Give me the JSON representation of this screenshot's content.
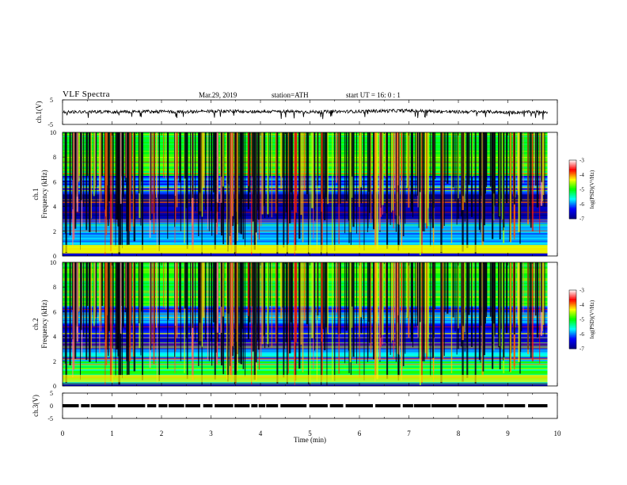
{
  "header": {
    "title": "VLF  Spectra",
    "date": "Mar.29, 2019",
    "station": "station=ATH",
    "start": "start  UT  =    16: 0   : 1"
  },
  "colorscale": {
    "stops": [
      "#00007f",
      "#0000ff",
      "#00ffff",
      "#00ff00",
      "#ffff00",
      "#ff0000",
      "#ffffff"
    ],
    "label": "log(PSD)(V²/Hz)"
  },
  "chart_data": [
    {
      "type": "line",
      "ylabel": "ch.1(V)",
      "ylim": [
        -5,
        5
      ],
      "yticks": [
        "5",
        "-5"
      ],
      "xlim": [
        0,
        10
      ],
      "x": [
        0,
        0.5,
        1,
        1.5,
        2,
        2.5,
        3,
        3.5,
        4,
        4.5,
        5,
        5.5,
        6,
        6.5,
        7,
        7.5,
        8,
        8.5,
        9,
        9.5,
        9.8
      ],
      "values": [
        0.1,
        0.2,
        0.1,
        0.3,
        0.2,
        0.1,
        0.3,
        0.4,
        0.2,
        0.3,
        0.1,
        0.2,
        0.3,
        0.5,
        0.6,
        0.3,
        0.1,
        0.2,
        -0.1,
        0.0,
        0.1
      ]
    },
    {
      "type": "heatmap",
      "ylabel": "ch.1\nFrequency (kHz)",
      "yticks": [
        "0",
        "2",
        "4",
        "6",
        "8",
        "10"
      ],
      "ylim": [
        0,
        10
      ],
      "xlim": [
        0,
        10
      ],
      "colorbar": {
        "ticks": [
          "-3",
          "-4",
          "-5",
          "-6",
          "-7"
        ],
        "range": [
          -7,
          -3
        ]
      },
      "bands_khz": [
        {
          "range": [
            0,
            0.3
          ],
          "level": -6.5
        },
        {
          "range": [
            0.3,
            0.9
          ],
          "level": -4.5
        },
        {
          "range": [
            0.9,
            3.0
          ],
          "level": -6.0
        },
        {
          "range": [
            3.0,
            5.0
          ],
          "level": -6.9
        },
        {
          "range": [
            5.0,
            6.5
          ],
          "level": -6.1
        },
        {
          "range": [
            6.5,
            10
          ],
          "level": -5.0
        }
      ]
    },
    {
      "type": "heatmap",
      "ylabel": "ch.2\nFrequency (kHz)",
      "yticks": [
        "0",
        "2",
        "4",
        "6",
        "8",
        "10"
      ],
      "ylim": [
        0,
        10
      ],
      "xlim": [
        0,
        10
      ],
      "colorbar": {
        "ticks": [
          "-3",
          "-4",
          "-5",
          "-6",
          "-7"
        ],
        "range": [
          -7,
          -3
        ]
      },
      "bands_khz": [
        {
          "range": [
            0,
            0.3
          ],
          "level": -6.5
        },
        {
          "range": [
            0.3,
            2.0
          ],
          "level": -5.2
        },
        {
          "range": [
            2.0,
            3.0
          ],
          "level": -5.9
        },
        {
          "range": [
            3.0,
            5.0
          ],
          "level": -6.5
        },
        {
          "range": [
            5.0,
            6.5
          ],
          "level": -6.0
        },
        {
          "range": [
            6.5,
            10
          ],
          "level": -5.0
        }
      ]
    },
    {
      "type": "line",
      "ylabel": "ch.3(V)",
      "ylim": [
        -5,
        5
      ],
      "yticks": [
        "5",
        "0",
        "-5"
      ],
      "xlim": [
        0,
        10
      ],
      "xlabel": "Time  (min)",
      "xticks": [
        "0",
        "1",
        "2",
        "3",
        "4",
        "5",
        "6",
        "7",
        "8",
        "9",
        "10"
      ],
      "level": 0
    }
  ]
}
